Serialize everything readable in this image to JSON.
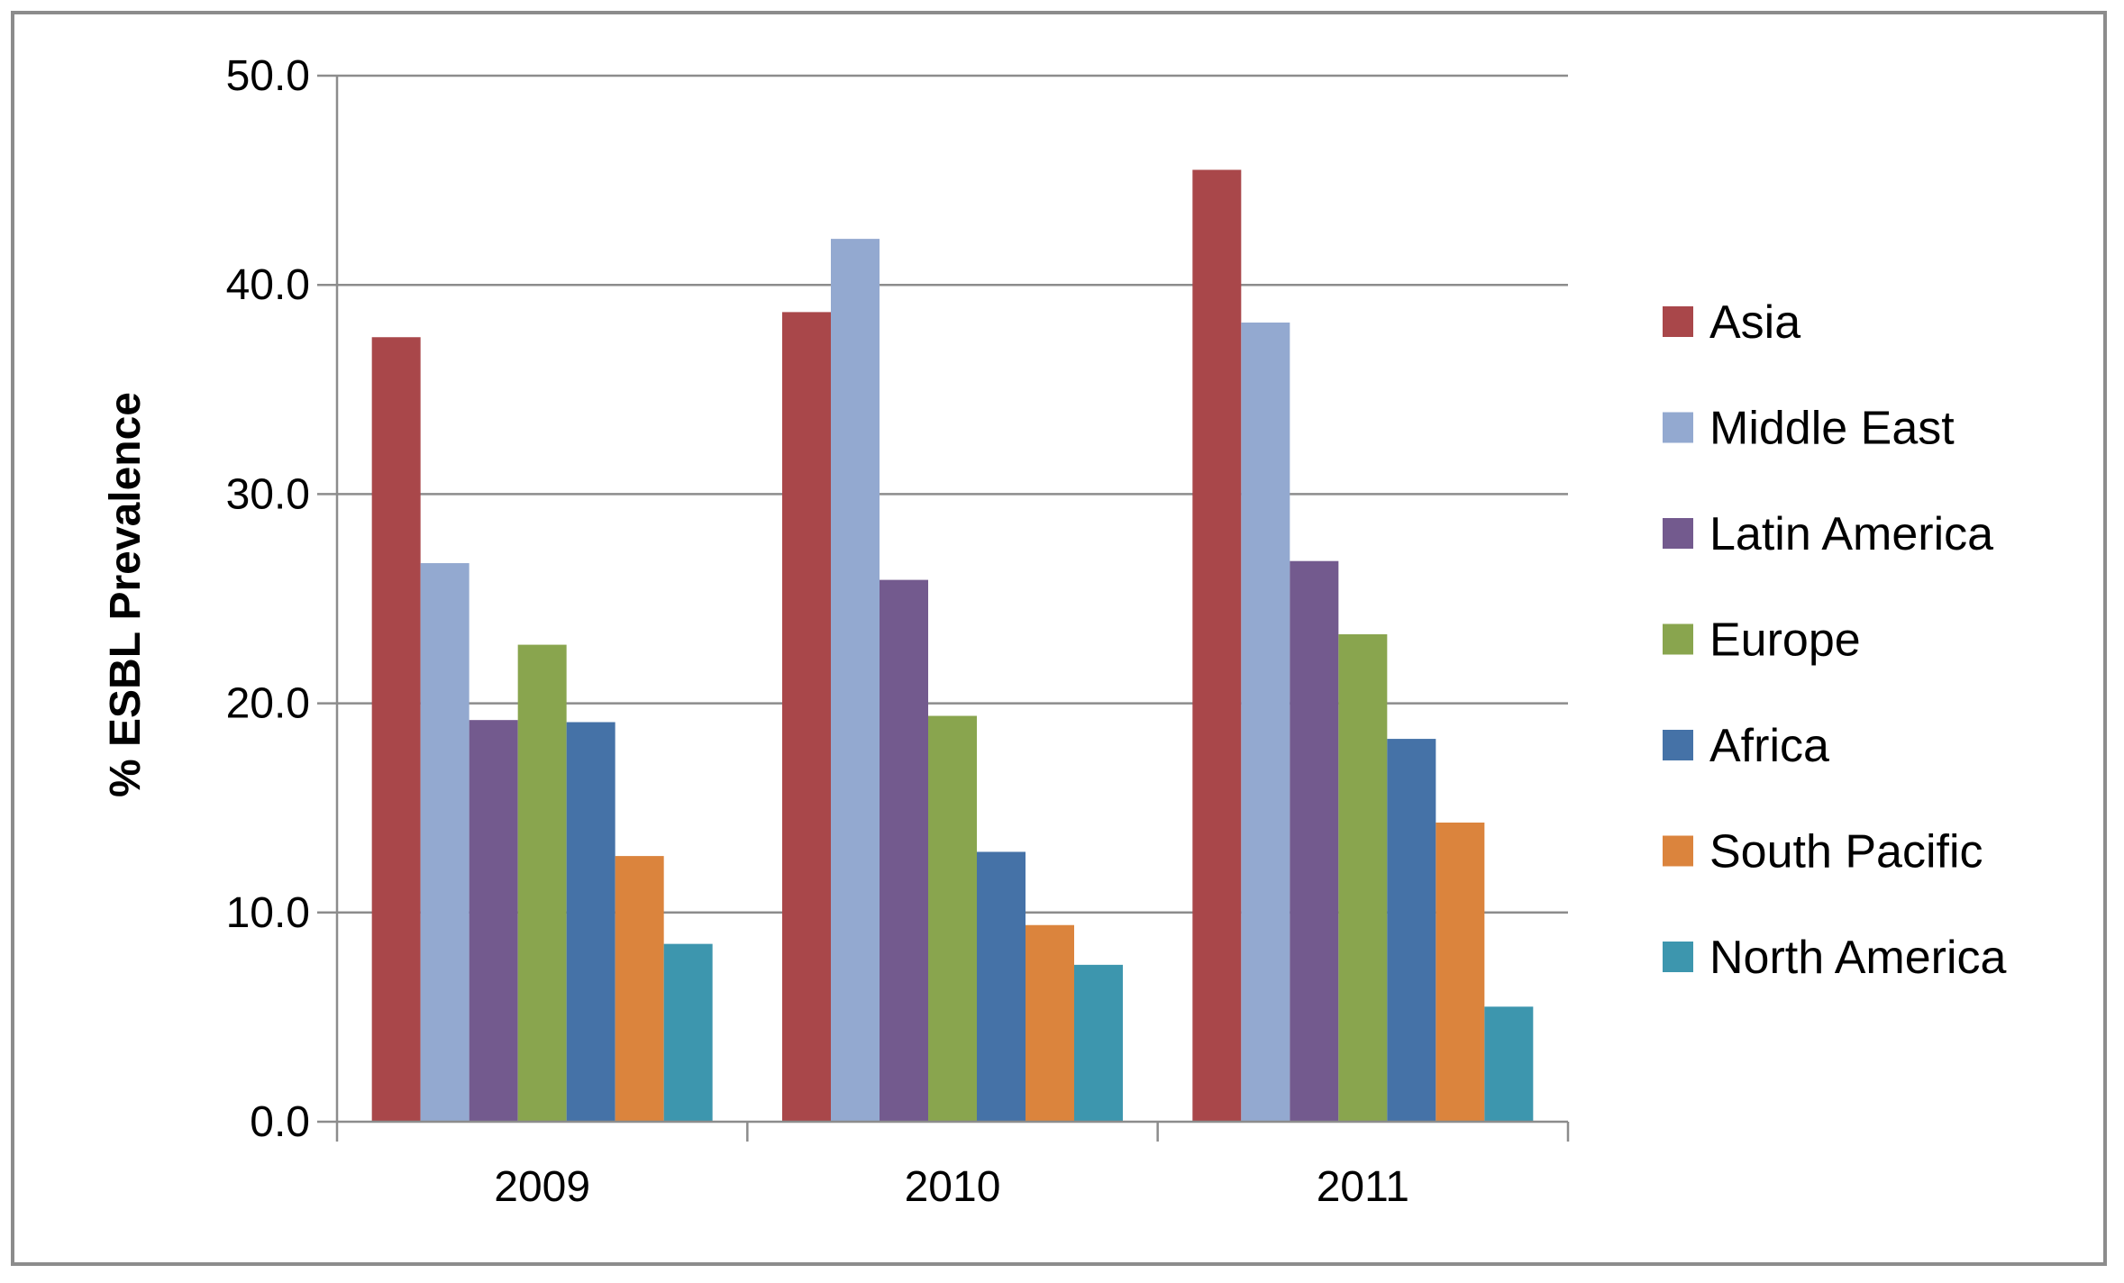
{
  "chart_data": {
    "type": "bar",
    "title": "",
    "xlabel": "",
    "ylabel": "% ESBL Prevalence",
    "ylim": [
      0,
      50
    ],
    "yticks": [
      "0.0",
      "10.0",
      "20.0",
      "30.0",
      "40.0",
      "50.0"
    ],
    "categories": [
      "2009",
      "2010",
      "2011"
    ],
    "grid": "horizontal",
    "legend": "right",
    "series": [
      {
        "name": "Asia",
        "color": "#A9474A",
        "values": [
          37.5,
          38.7,
          45.5
        ]
      },
      {
        "name": "Middle East",
        "color": "#93A9D0",
        "values": [
          26.7,
          42.2,
          38.2
        ]
      },
      {
        "name": "Latin America",
        "color": "#735A8E",
        "values": [
          19.2,
          25.9,
          26.8
        ]
      },
      {
        "name": "Europe",
        "color": "#89A54E",
        "values": [
          22.8,
          19.4,
          23.3
        ]
      },
      {
        "name": "Africa",
        "color": "#4572A7",
        "values": [
          19.1,
          12.9,
          18.3
        ]
      },
      {
        "name": "South Pacific",
        "color": "#DB843D",
        "values": [
          12.7,
          9.4,
          14.3
        ]
      },
      {
        "name": "North America",
        "color": "#3D96AE",
        "values": [
          8.5,
          7.5,
          5.5
        ]
      }
    ]
  }
}
